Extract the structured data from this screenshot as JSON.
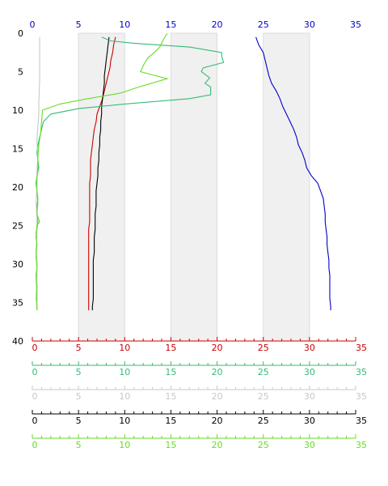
{
  "chart_data": {
    "type": "line",
    "title": "",
    "depth_axis": {
      "ylim": [
        0,
        40
      ],
      "ticks": [
        "0",
        "5",
        "10",
        "15",
        "20",
        "25",
        "30",
        "35",
        "40"
      ],
      "color": "#000000",
      "inverted": true
    },
    "top_axis": {
      "ticks": [
        "0",
        "5",
        "10",
        "15",
        "20",
        "25",
        "30",
        "35"
      ],
      "range": [
        0,
        35
      ],
      "color": "#0000cc"
    },
    "bottom_axes": [
      {
        "range": [
          0,
          35
        ],
        "ticks": [
          "0",
          "5",
          "10",
          "15",
          "20",
          "25",
          "30",
          "35"
        ],
        "color": "#cc0000"
      },
      {
        "range": [
          0,
          35
        ],
        "ticks": [
          "0",
          "5",
          "10",
          "15",
          "20",
          "25",
          "30",
          "35"
        ],
        "color": "#33bb77"
      },
      {
        "range": [
          0,
          35
        ],
        "ticks": [
          "0",
          "5",
          "10",
          "15",
          "20",
          "25",
          "30",
          "35"
        ],
        "color": "#c8c8c8"
      },
      {
        "range": [
          0,
          35
        ],
        "ticks": [
          "0",
          "5",
          "10",
          "15",
          "20",
          "25",
          "30",
          "35"
        ],
        "color": "#000000"
      },
      {
        "range": [
          0,
          35
        ],
        "ticks": [
          "0",
          "5",
          "10",
          "15",
          "20",
          "25",
          "30",
          "35"
        ],
        "color": "#66dd22"
      }
    ],
    "shaded_bands": [
      [
        5,
        10
      ],
      [
        15,
        20
      ],
      [
        25,
        30
      ]
    ],
    "grid": "vertical bands",
    "series": [
      {
        "color": "#0000cc",
        "points": [
          [
            24.2,
            0.5
          ],
          [
            24.5,
            1.5
          ],
          [
            25.0,
            2.5
          ],
          [
            25.2,
            3.5
          ],
          [
            25.4,
            4.5
          ],
          [
            25.6,
            5.5
          ],
          [
            25.9,
            6.5
          ],
          [
            26.4,
            7.5
          ],
          [
            26.8,
            8.5
          ],
          [
            27.1,
            9.5
          ],
          [
            27.5,
            10.5
          ],
          [
            27.9,
            11.5
          ],
          [
            28.3,
            12.5
          ],
          [
            28.6,
            13.5
          ],
          [
            28.8,
            14.5
          ],
          [
            29.2,
            15.5
          ],
          [
            29.5,
            16.5
          ],
          [
            29.7,
            17.5
          ],
          [
            30.2,
            18.5
          ],
          [
            30.9,
            19.5
          ],
          [
            31.2,
            20.5
          ],
          [
            31.5,
            21.5
          ],
          [
            31.6,
            22.5
          ],
          [
            31.7,
            23.5
          ],
          [
            31.7,
            24.5
          ],
          [
            31.8,
            25.5
          ],
          [
            31.9,
            26.5
          ],
          [
            31.9,
            27.5
          ],
          [
            32.0,
            28.5
          ],
          [
            32.1,
            29.5
          ],
          [
            32.1,
            30.5
          ],
          [
            32.2,
            31.5
          ],
          [
            32.2,
            32.5
          ],
          [
            32.2,
            33.5
          ],
          [
            32.2,
            34.5
          ],
          [
            32.3,
            35.5
          ],
          [
            32.3,
            36.0
          ]
        ]
      },
      {
        "color": "#cc0000",
        "points": [
          [
            9.0,
            0.5
          ],
          [
            8.8,
            1.5
          ],
          [
            8.7,
            2.5
          ],
          [
            8.5,
            3.5
          ],
          [
            8.4,
            4.5
          ],
          [
            8.2,
            5.5
          ],
          [
            8.0,
            6.5
          ],
          [
            7.8,
            7.5
          ],
          [
            7.6,
            8.5
          ],
          [
            7.3,
            9.5
          ],
          [
            7.0,
            10.5
          ],
          [
            6.9,
            11.5
          ],
          [
            6.7,
            12.5
          ],
          [
            6.6,
            13.5
          ],
          [
            6.5,
            14.5
          ],
          [
            6.4,
            15.5
          ],
          [
            6.3,
            16.5
          ],
          [
            6.3,
            17.5
          ],
          [
            6.3,
            18.5
          ],
          [
            6.2,
            19.5
          ],
          [
            6.2,
            20.5
          ],
          [
            6.2,
            21.5
          ],
          [
            6.2,
            22.5
          ],
          [
            6.2,
            23.5
          ],
          [
            6.2,
            24.5
          ],
          [
            6.1,
            25.5
          ],
          [
            6.1,
            26.5
          ],
          [
            6.1,
            27.5
          ],
          [
            6.1,
            28.5
          ],
          [
            6.1,
            29.5
          ],
          [
            6.1,
            30.5
          ],
          [
            6.1,
            31.5
          ],
          [
            6.1,
            32.5
          ],
          [
            6.1,
            33.5
          ],
          [
            6.1,
            34.5
          ],
          [
            6.1,
            35.5
          ],
          [
            6.1,
            36.0
          ]
        ]
      },
      {
        "color": "#000000",
        "points": [
          [
            8.3,
            0.5
          ],
          [
            8.2,
            1.5
          ],
          [
            8.1,
            2.5
          ],
          [
            8.0,
            3.5
          ],
          [
            7.9,
            4.5
          ],
          [
            7.8,
            5.5
          ],
          [
            7.8,
            6.5
          ],
          [
            7.7,
            7.5
          ],
          [
            7.6,
            8.5
          ],
          [
            7.5,
            9.5
          ],
          [
            7.5,
            10.5
          ],
          [
            7.4,
            11.5
          ],
          [
            7.4,
            12.5
          ],
          [
            7.3,
            13.5
          ],
          [
            7.3,
            14.5
          ],
          [
            7.2,
            15.5
          ],
          [
            7.2,
            16.5
          ],
          [
            7.1,
            17.5
          ],
          [
            7.1,
            18.5
          ],
          [
            7.0,
            19.5
          ],
          [
            6.9,
            20.5
          ],
          [
            6.9,
            21.5
          ],
          [
            6.9,
            22.5
          ],
          [
            6.8,
            23.5
          ],
          [
            6.8,
            24.5
          ],
          [
            6.8,
            25.5
          ],
          [
            6.7,
            26.5
          ],
          [
            6.7,
            27.5
          ],
          [
            6.7,
            28.5
          ],
          [
            6.6,
            29.5
          ],
          [
            6.6,
            30.5
          ],
          [
            6.6,
            31.5
          ],
          [
            6.6,
            32.5
          ],
          [
            6.6,
            33.5
          ],
          [
            6.6,
            34.5
          ],
          [
            6.5,
            35.5
          ],
          [
            6.5,
            36.0
          ]
        ]
      },
      {
        "color": "#33bb77",
        "points": [
          [
            7.5,
            0.5
          ],
          [
            8.5,
            1.0
          ],
          [
            11.0,
            1.3
          ],
          [
            17.0,
            1.8
          ],
          [
            20.5,
            2.5
          ],
          [
            20.5,
            3.0
          ],
          [
            20.7,
            3.8
          ],
          [
            18.5,
            4.5
          ],
          [
            18.3,
            5.0
          ],
          [
            19.2,
            5.8
          ],
          [
            18.7,
            6.5
          ],
          [
            19.3,
            7.0
          ],
          [
            19.3,
            8.0
          ],
          [
            17.0,
            8.5
          ],
          [
            10.0,
            9.2
          ],
          [
            5.0,
            9.8
          ],
          [
            2.0,
            10.5
          ],
          [
            1.2,
            11.5
          ],
          [
            1.0,
            12.5
          ],
          [
            0.8,
            13.5
          ],
          [
            0.6,
            14.5
          ],
          [
            0.5,
            15.5
          ],
          [
            0.6,
            16.5
          ],
          [
            0.7,
            17.5
          ],
          [
            0.5,
            18.5
          ],
          [
            0.4,
            19.5
          ],
          [
            0.5,
            20.5
          ],
          [
            0.6,
            21.5
          ],
          [
            0.5,
            22.5
          ],
          [
            0.5,
            23.5
          ],
          [
            0.6,
            24.5
          ],
          [
            0.5,
            25.5
          ],
          [
            0.4,
            26.5
          ],
          [
            0.5,
            27.5
          ],
          [
            0.4,
            28.5
          ],
          [
            0.5,
            29.5
          ],
          [
            0.5,
            30.5
          ],
          [
            0.4,
            31.5
          ],
          [
            0.5,
            32.5
          ],
          [
            0.5,
            33.5
          ],
          [
            0.4,
            34.5
          ],
          [
            0.5,
            35.5
          ],
          [
            0.5,
            36.0
          ]
        ]
      },
      {
        "color": "#c8c8c8",
        "points": [
          [
            0.8,
            0.5
          ],
          [
            0.8,
            3.0
          ],
          [
            0.8,
            6.0
          ],
          [
            0.7,
            9.0
          ],
          [
            0.7,
            10.5
          ],
          [
            0.6,
            12.0
          ],
          [
            0.5,
            14.0
          ],
          [
            0.6,
            16.0
          ],
          [
            0.5,
            18.0
          ],
          [
            0.5,
            20.0
          ],
          [
            0.4,
            22.0
          ],
          [
            0.5,
            24.0
          ],
          [
            0.5,
            26.0
          ],
          [
            0.4,
            28.0
          ],
          [
            0.5,
            30.0
          ],
          [
            0.5,
            32.0
          ],
          [
            0.4,
            34.0
          ],
          [
            0.5,
            36.0
          ]
        ]
      },
      {
        "color": "#66dd22",
        "points": [
          [
            14.6,
            0.0
          ],
          [
            14.2,
            0.8
          ],
          [
            13.8,
            1.8
          ],
          [
            13.2,
            2.5
          ],
          [
            12.5,
            3.2
          ],
          [
            12.1,
            4.0
          ],
          [
            11.7,
            5.0
          ],
          [
            14.6,
            5.9
          ],
          [
            11.5,
            7.0
          ],
          [
            9.5,
            7.8
          ],
          [
            6.0,
            8.5
          ],
          [
            3.0,
            9.2
          ],
          [
            1.1,
            10.0
          ],
          [
            1.0,
            11.5
          ],
          [
            0.9,
            13.0
          ],
          [
            0.7,
            14.5
          ],
          [
            0.6,
            16.0
          ],
          [
            0.6,
            17.5
          ],
          [
            0.5,
            19.0
          ],
          [
            0.5,
            20.5
          ],
          [
            0.6,
            22.0
          ],
          [
            0.5,
            23.5
          ],
          [
            0.8,
            24.5
          ],
          [
            0.5,
            25.0
          ],
          [
            0.4,
            26.0
          ],
          [
            0.5,
            27.5
          ],
          [
            0.4,
            29.0
          ],
          [
            0.5,
            30.5
          ],
          [
            0.4,
            32.0
          ],
          [
            0.5,
            33.5
          ],
          [
            0.5,
            35.0
          ],
          [
            0.5,
            36.0
          ]
        ]
      }
    ]
  }
}
